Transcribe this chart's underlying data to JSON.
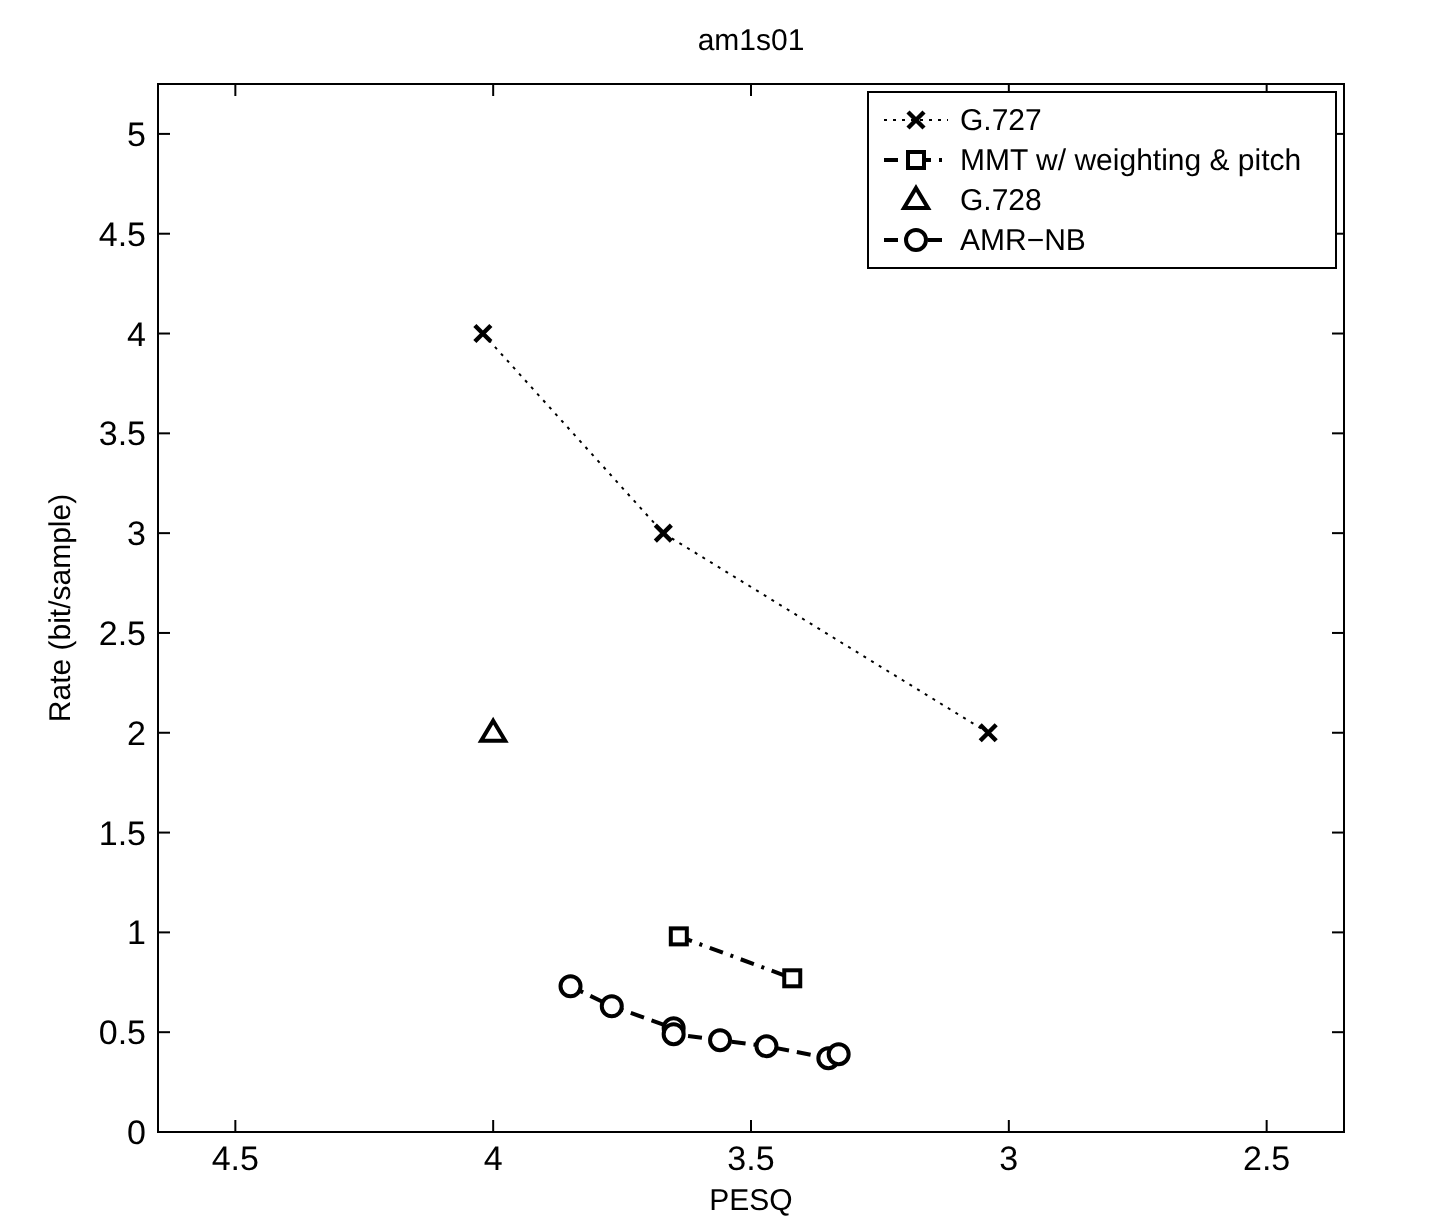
{
  "chart_data": {
    "type": "line",
    "title": "am1s01",
    "xlabel": "PESQ",
    "ylabel": "Rate (bit/sample)",
    "xlim": [
      4.65,
      2.35
    ],
    "xticks": [
      4.5,
      4,
      3.5,
      3,
      2.5
    ],
    "ylim": [
      0,
      5.25
    ],
    "yticks": [
      0,
      0.5,
      1,
      1.5,
      2,
      2.5,
      3,
      3.5,
      4,
      4.5,
      5
    ],
    "grid": false,
    "legend": "top right",
    "series": [
      {
        "name": "G.727",
        "color": "#000000",
        "marker": "cross",
        "line_style": "dotted",
        "x": [
          4.02,
          3.67,
          3.04
        ],
        "values": [
          4,
          3,
          2
        ]
      },
      {
        "name": "MMT w/ weighting & pitch",
        "color": "#000000",
        "marker": "square",
        "line_style": "dashdot",
        "x": [
          3.64,
          3.42
        ],
        "values": [
          0.98,
          0.77
        ]
      },
      {
        "name": "G.728",
        "type": "scatter",
        "color": "#000000",
        "marker": "triangle",
        "x": [
          4.0
        ],
        "values": [
          2
        ]
      },
      {
        "name": "AMR−NB",
        "color": "#000000",
        "marker": "circle",
        "line_style": "dashed",
        "x": [
          3.85,
          3.77,
          3.65,
          3.65,
          3.56,
          3.47,
          3.35,
          3.33
        ],
        "values": [
          0.73,
          0.63,
          0.52,
          0.49,
          0.46,
          0.43,
          0.37,
          0.39
        ]
      }
    ]
  }
}
